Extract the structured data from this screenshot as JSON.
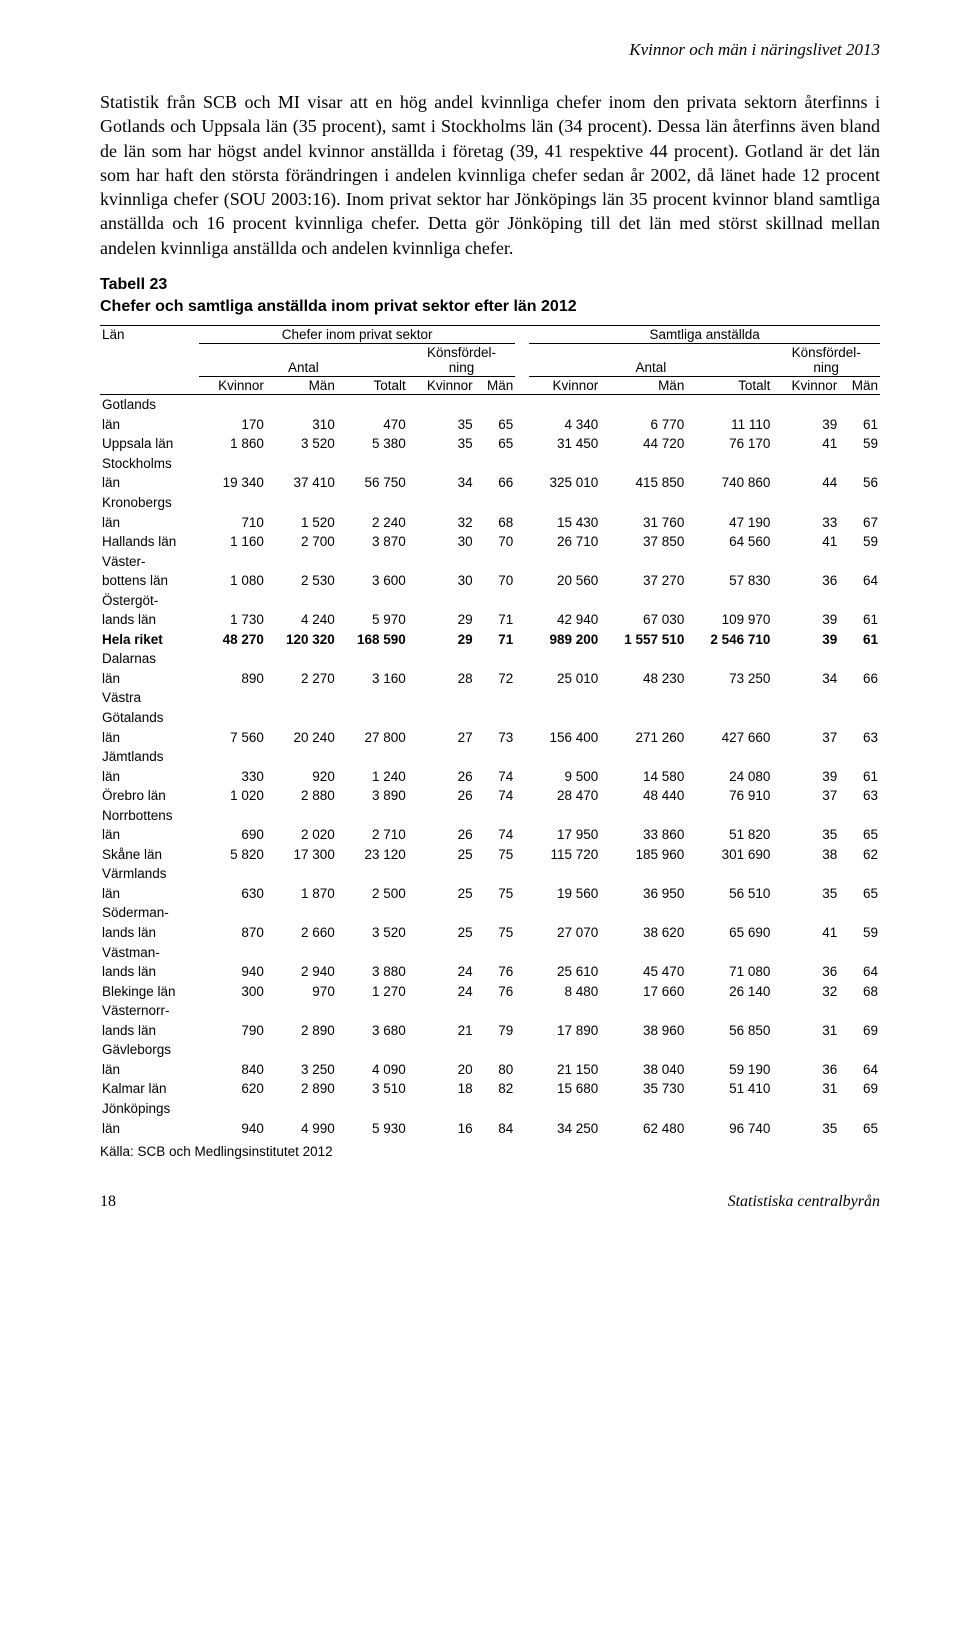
{
  "header": {
    "title": "Kvinnor och män i näringslivet 2013"
  },
  "paragraph": "Statistik från SCB och MI visar att en hög andel kvinnliga chefer inom den privata sektorn återfinns i Gotlands och Uppsala län (35 procent), samt i Stockholms län (34 procent). Dessa län återfinns även bland de län som har högst andel kvinnor anställda i företag (39, 41 respektive 44 procent). Gotland är det län som har haft den största förändringen i andelen kvinnliga chefer sedan år 2002, då länet hade 12 procent kvinnliga chefer (SOU 2003:16). Inom privat sektor har Jönköpings län 35 procent kvinnor bland samtliga anställda och 16 procent kvinnliga chefer. Detta gör Jönköping till det län med störst skillnad mellan andelen kvinnliga anställda och andelen kvinnliga chefer.",
  "table": {
    "caption_l1": "Tabell 23",
    "caption_l2": "Chefer och samtliga anställda inom privat sektor efter län 2012",
    "h_lan": "Län",
    "h_chefer": "Chefer inom privat sektor",
    "h_samtliga": "Samtliga anställda",
    "h_antal": "Antal",
    "h_konsf1": "Könsfördel-",
    "h_konsf2": "ning",
    "h_kvinnor": "Kvinnor",
    "h_man": "Män",
    "h_totalt": "Totalt",
    "rows": [
      {
        "lbl": "Gotlands län",
        "c": [
          "170",
          "310",
          "470",
          "35",
          "65",
          "4 340",
          "6 770",
          "11 110",
          "39",
          "61"
        ]
      },
      {
        "lbl": "Uppsala län",
        "c": [
          "1 860",
          "3 520",
          "5 380",
          "35",
          "65",
          "31 450",
          "44 720",
          "76 170",
          "41",
          "59"
        ]
      },
      {
        "lbl": "Stockholms län",
        "c": [
          "19 340",
          "37 410",
          "56 750",
          "34",
          "66",
          "325 010",
          "415 850",
          "740 860",
          "44",
          "56"
        ]
      },
      {
        "lbl": "Kronobergs län",
        "c": [
          "710",
          "1 520",
          "2 240",
          "32",
          "68",
          "15 430",
          "31 760",
          "47 190",
          "33",
          "67"
        ]
      },
      {
        "lbl": "Hallands län",
        "c": [
          "1 160",
          "2 700",
          "3 870",
          "30",
          "70",
          "26 710",
          "37 850",
          "64 560",
          "41",
          "59"
        ]
      },
      {
        "lbl": "Väster-bottens län",
        "c": [
          "1 080",
          "2 530",
          "3 600",
          "30",
          "70",
          "20 560",
          "37 270",
          "57 830",
          "36",
          "64"
        ]
      },
      {
        "lbl": "Östergöt-lands län",
        "c": [
          "1 730",
          "4 240",
          "5 970",
          "29",
          "71",
          "42 940",
          "67 030",
          "109 970",
          "39",
          "61"
        ]
      },
      {
        "lbl": "Hela riket",
        "c": [
          "48 270",
          "120 320",
          "168 590",
          "29",
          "71",
          "989 200",
          "1 557 510",
          "2 546 710",
          "39",
          "61"
        ],
        "bold": true
      },
      {
        "lbl": "Dalarnas län",
        "c": [
          "890",
          "2 270",
          "3 160",
          "28",
          "72",
          "25 010",
          "48 230",
          "73 250",
          "34",
          "66"
        ]
      },
      {
        "lbl": "Västra Götalands län",
        "c": [
          "7 560",
          "20 240",
          "27 800",
          "27",
          "73",
          "156 400",
          "271 260",
          "427 660",
          "37",
          "63"
        ]
      },
      {
        "lbl": "Jämtlands län",
        "c": [
          "330",
          "920",
          "1 240",
          "26",
          "74",
          "9 500",
          "14 580",
          "24 080",
          "39",
          "61"
        ]
      },
      {
        "lbl": "Örebro län",
        "c": [
          "1 020",
          "2 880",
          "3 890",
          "26",
          "74",
          "28 470",
          "48 440",
          "76 910",
          "37",
          "63"
        ]
      },
      {
        "lbl": "Norrbottens län",
        "c": [
          "690",
          "2 020",
          "2 710",
          "26",
          "74",
          "17 950",
          "33 860",
          "51 820",
          "35",
          "65"
        ]
      },
      {
        "lbl": "Skåne län",
        "c": [
          "5 820",
          "17 300",
          "23 120",
          "25",
          "75",
          "115 720",
          "185 960",
          "301 690",
          "38",
          "62"
        ]
      },
      {
        "lbl": "Värmlands län",
        "c": [
          "630",
          "1 870",
          "2 500",
          "25",
          "75",
          "19 560",
          "36 950",
          "56 510",
          "35",
          "65"
        ]
      },
      {
        "lbl": "Söderman-lands län",
        "c": [
          "870",
          "2 660",
          "3 520",
          "25",
          "75",
          "27 070",
          "38 620",
          "65 690",
          "41",
          "59"
        ]
      },
      {
        "lbl": "Västman-lands län",
        "c": [
          "940",
          "2 940",
          "3 880",
          "24",
          "76",
          "25 610",
          "45 470",
          "71 080",
          "36",
          "64"
        ]
      },
      {
        "lbl": "Blekinge län",
        "c": [
          "300",
          "970",
          "1 270",
          "24",
          "76",
          "8 480",
          "17 660",
          "26 140",
          "32",
          "68"
        ]
      },
      {
        "lbl": "Västernorr-lands län",
        "c": [
          "790",
          "2 890",
          "3 680",
          "21",
          "79",
          "17 890",
          "38 960",
          "56 850",
          "31",
          "69"
        ]
      },
      {
        "lbl": "Gävleborgs län",
        "c": [
          "840",
          "3 250",
          "4 090",
          "20",
          "80",
          "21 150",
          "38 040",
          "59 190",
          "36",
          "64"
        ]
      },
      {
        "lbl": "Kalmar län",
        "c": [
          "620",
          "2 890",
          "3 510",
          "18",
          "82",
          "15 680",
          "35 730",
          "51 410",
          "31",
          "69"
        ]
      },
      {
        "lbl": "Jönköpings län",
        "c": [
          "940",
          "4 990",
          "5 930",
          "16",
          "84",
          "34 250",
          "62 480",
          "96 740",
          "35",
          "65"
        ]
      }
    ],
    "source": "Källa: SCB och Medlingsinstitutet 2012"
  },
  "footer": {
    "page": "18",
    "publisher": "Statistiska centralbyrån"
  }
}
